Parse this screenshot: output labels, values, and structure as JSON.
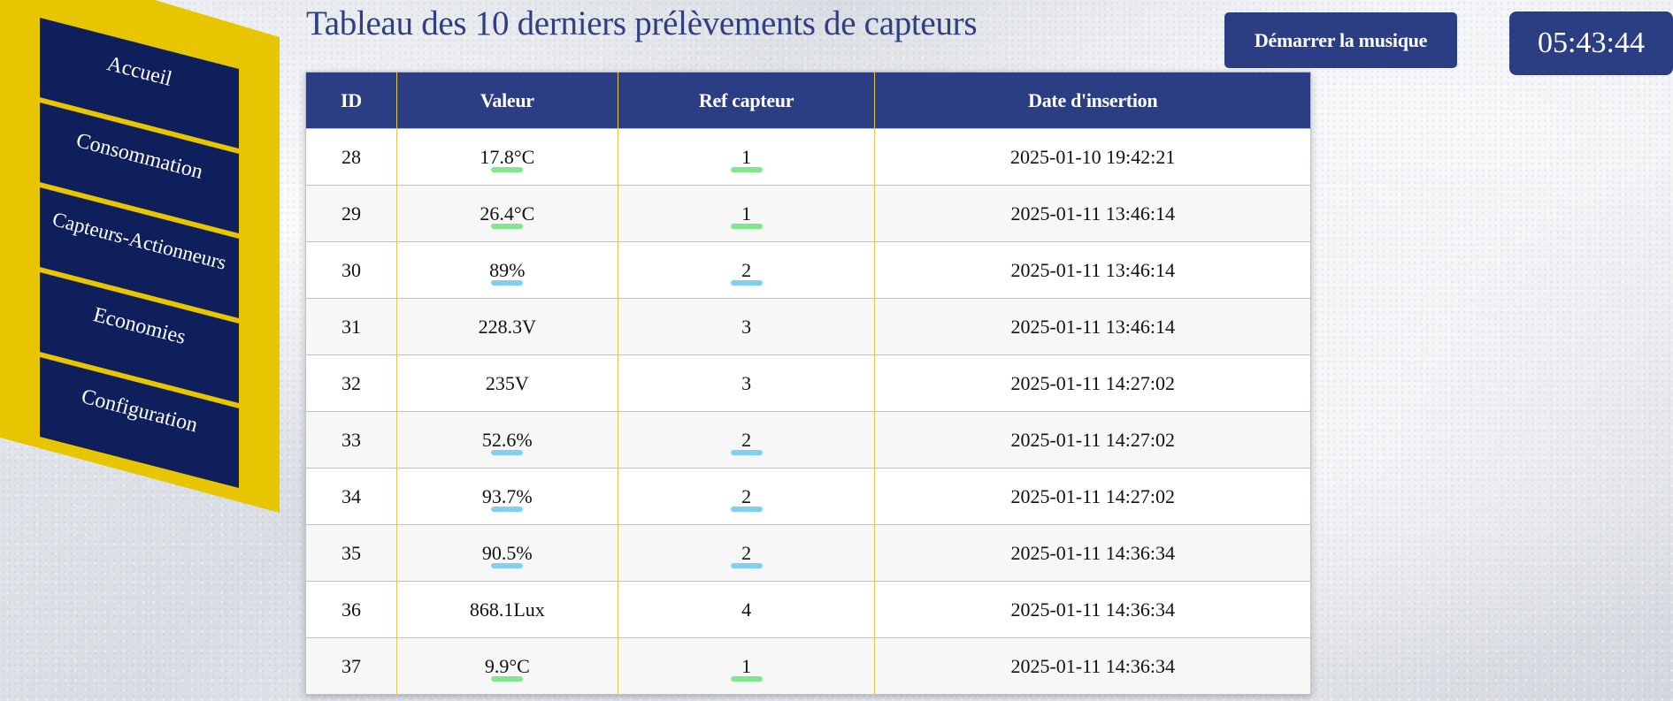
{
  "nav": {
    "items": [
      {
        "label": "Accueil"
      },
      {
        "label": "Consommation"
      },
      {
        "label": "Capteurs-Actionneurs"
      },
      {
        "label": "Economies"
      },
      {
        "label": "Configuration"
      }
    ]
  },
  "header": {
    "title": "Tableau des 10 derniers prélèvements de capteurs",
    "music_button": "Démarrer la musique",
    "clock": "05:43:44"
  },
  "colors": {
    "primary": "#2c3e83",
    "accent_yellow": "#e7c500",
    "temp_underline": "#7fe88f",
    "humidity_underline": "#7fd0f2"
  },
  "table": {
    "headers": [
      "ID",
      "Valeur",
      "Ref capteur",
      "Date d'insertion"
    ],
    "rows": [
      {
        "id": "28",
        "value": "17.8°C",
        "ref": "1",
        "date": "2025-01-10 19:42:21",
        "mark": "temp"
      },
      {
        "id": "29",
        "value": "26.4°C",
        "ref": "1",
        "date": "2025-01-11 13:46:14",
        "mark": "temp"
      },
      {
        "id": "30",
        "value": "89%",
        "ref": "2",
        "date": "2025-01-11 13:46:14",
        "mark": "humidity"
      },
      {
        "id": "31",
        "value": "228.3V",
        "ref": "3",
        "date": "2025-01-11 13:46:14",
        "mark": "none"
      },
      {
        "id": "32",
        "value": "235V",
        "ref": "3",
        "date": "2025-01-11 14:27:02",
        "mark": "none"
      },
      {
        "id": "33",
        "value": "52.6%",
        "ref": "2",
        "date": "2025-01-11 14:27:02",
        "mark": "humidity"
      },
      {
        "id": "34",
        "value": "93.7%",
        "ref": "2",
        "date": "2025-01-11 14:27:02",
        "mark": "humidity"
      },
      {
        "id": "35",
        "value": "90.5%",
        "ref": "2",
        "date": "2025-01-11 14:36:34",
        "mark": "humidity"
      },
      {
        "id": "36",
        "value": "868.1Lux",
        "ref": "4",
        "date": "2025-01-11 14:36:34",
        "mark": "none"
      },
      {
        "id": "37",
        "value": "9.9°C",
        "ref": "1",
        "date": "2025-01-11 14:36:34",
        "mark": "temp"
      }
    ]
  }
}
